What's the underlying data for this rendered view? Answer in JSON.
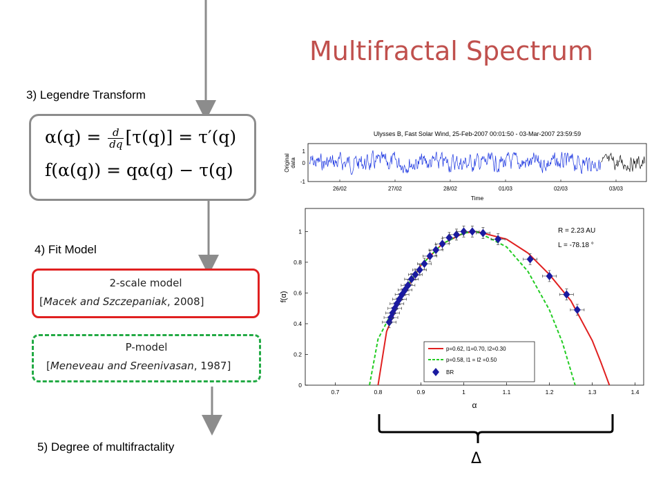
{
  "title": "Multifractal Spectrum",
  "steps": {
    "step3": "3) Legendre Transform",
    "step4": "4) Fit Model",
    "step5": "5) Degree of multifractality"
  },
  "formula": {
    "line1_lhs": "α(q) = ",
    "line1_num": "d",
    "line1_den": "dq",
    "line1_rhs": "[τ(q)] = τ′(q)",
    "line2": "f(α(q)) = qα(q) − τ(q)"
  },
  "models": {
    "two_scale": {
      "name": "2-scale model",
      "ref_open": "[",
      "ref_authors": "Macek and Szczepaniak",
      "ref_rest": ", 2008]"
    },
    "p_model": {
      "name": "P-model",
      "ref_open": "[",
      "ref_authors": "Meneveau and Sreenivasan",
      "ref_rest": ", 1987]"
    }
  },
  "delta_symbol": "Δ",
  "timeseries": {
    "title": "Ulysses  B, Fast Solar Wind, 25-Feb-2007 00:01:50 - 03-Mar-2007 23:59:59",
    "ylabel_1": "Original",
    "ylabel_2": "data",
    "xlabel": "Time",
    "yticks": [
      "1",
      "0",
      "-1"
    ],
    "xticks": [
      "26/02",
      "27/02",
      "28/02",
      "01/03",
      "02/03",
      "03/03"
    ]
  },
  "chart_data": {
    "type": "scatter",
    "xlabel": "α",
    "ylabel": "f(α)",
    "xlim": [
      0.63,
      1.42
    ],
    "ylim": [
      0,
      1.15
    ],
    "xticks": [
      "0.7",
      "0.8",
      "0.9",
      "1",
      "1.1",
      "1.2",
      "1.3",
      "1.4"
    ],
    "yticks": [
      "0",
      "0.2",
      "0.4",
      "0.6",
      "0.8",
      "1"
    ],
    "annotations": [
      "R = 2.23 AU",
      "L = -78.18 °"
    ],
    "legend": {
      "placement": "bottom-right",
      "entries": [
        "p=0.62, l1=0.70, l2=0.30",
        "p=0.58, l1 = l2 =0.50",
        "BR"
      ]
    },
    "series": [
      {
        "kind": "points",
        "color": "#1a1aa0",
        "x": [
          0.826,
          0.83,
          0.834,
          0.839,
          0.844,
          0.85,
          0.856,
          0.863,
          0.87,
          0.878,
          0.887,
          0.897,
          0.908,
          0.921,
          0.935,
          0.95,
          0.966,
          0.983,
          1.0,
          1.02,
          1.045,
          1.08,
          1.155,
          1.2,
          1.24,
          1.265
        ],
        "y": [
          0.41,
          0.44,
          0.47,
          0.5,
          0.53,
          0.56,
          0.59,
          0.62,
          0.65,
          0.69,
          0.72,
          0.75,
          0.79,
          0.84,
          0.88,
          0.92,
          0.96,
          0.98,
          1.0,
          1.0,
          0.99,
          0.95,
          0.82,
          0.71,
          0.59,
          0.49
        ]
      },
      {
        "kind": "curve",
        "color": "#e02020",
        "x": [
          0.8,
          0.82,
          0.85,
          0.9,
          0.95,
          1.0,
          1.03,
          1.1,
          1.15,
          1.2,
          1.25,
          1.3,
          1.32,
          1.34
        ],
        "y": [
          0.0,
          0.35,
          0.55,
          0.78,
          0.92,
          0.99,
          1.0,
          0.95,
          0.86,
          0.72,
          0.55,
          0.29,
          0.15,
          0.0
        ]
      },
      {
        "kind": "curve-dashed",
        "color": "#22cc22",
        "x": [
          0.78,
          0.8,
          0.85,
          0.9,
          0.95,
          1.0,
          1.03,
          1.1,
          1.15,
          1.2,
          1.23,
          1.26
        ],
        "y": [
          0.0,
          0.3,
          0.57,
          0.78,
          0.92,
          0.99,
          1.0,
          0.9,
          0.74,
          0.49,
          0.28,
          0.0
        ]
      }
    ]
  }
}
